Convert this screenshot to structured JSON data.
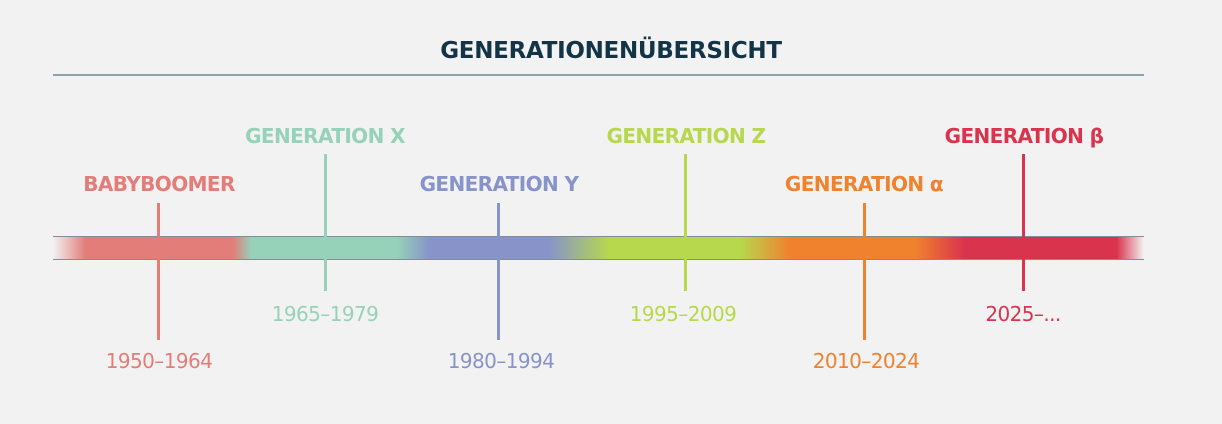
{
  "title": "GENERATIONENÜBERSICHT",
  "generations": [
    {
      "name": "BABYBOOMER",
      "years": "1950–1964",
      "color": "#e27d79"
    },
    {
      "name": "GENERATION X",
      "years": "1965–1979",
      "color": "#96d2b9"
    },
    {
      "name": "GENERATION Y",
      "years": "1980–1994",
      "color": "#8894c9"
    },
    {
      "name": "GENERATION Z",
      "years": "1995–2009",
      "color": "#b7d84d"
    },
    {
      "name": "GENERATION α",
      "years": "2010–2024",
      "color": "#f0822e"
    },
    {
      "name": "GENERATION β",
      "years": "2025–...",
      "color": "#d9344d"
    }
  ]
}
